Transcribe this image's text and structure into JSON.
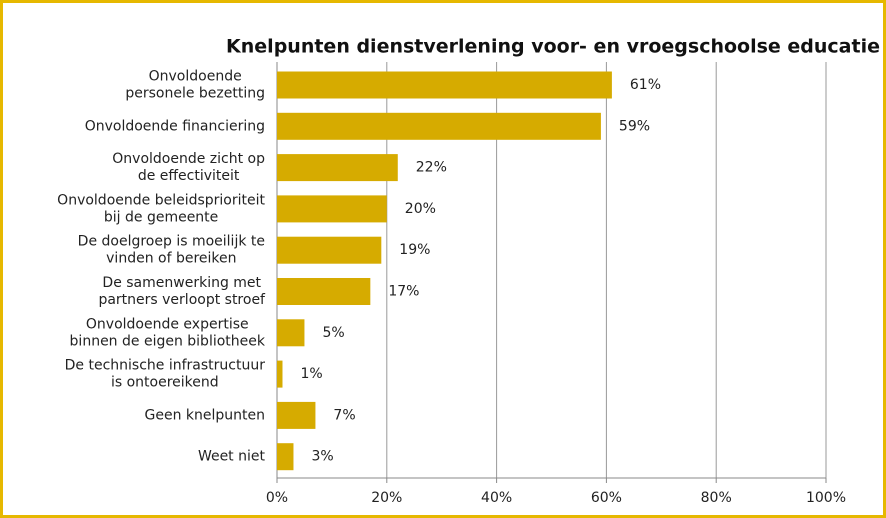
{
  "chart_data": {
    "type": "barh",
    "title": "Knelpunten dienstverlening voor- en vroegschoolse educatie",
    "categories": [
      "Onvoldoende\npersonele bezetting",
      "Onvoldoende financiering",
      "Onvoldoende zicht op\nde effectiviteit",
      "Onvoldoende beleidsprioriteit\nbij de gemeente",
      "De doelgroep is moeilijk te\nvinden of bereiken",
      "De samenwerking met\npartners verloopt stroef",
      "Onvoldoende expertise\nbinnen de eigen bibliotheek",
      "De technische infrastructuur\nis ontoereikend",
      "Geen knelpunten",
      "Weet niet"
    ],
    "values": [
      61,
      59,
      22,
      20,
      19,
      17,
      5,
      1,
      7,
      3
    ],
    "value_labels": [
      "61%",
      "59%",
      "22%",
      "20%",
      "19%",
      "17%",
      "5%",
      "1%",
      "7%",
      "3%"
    ],
    "color": "#d6ab00",
    "xlim": [
      0,
      100
    ],
    "xticks": [
      {
        "value": 0,
        "label": "0%"
      },
      {
        "value": 20,
        "label": "20%"
      },
      {
        "value": 40,
        "label": "40%"
      },
      {
        "value": 60,
        "label": "60%"
      },
      {
        "value": 80,
        "label": "80%"
      },
      {
        "value": 100,
        "label": "100%"
      }
    ],
    "grid": true
  }
}
